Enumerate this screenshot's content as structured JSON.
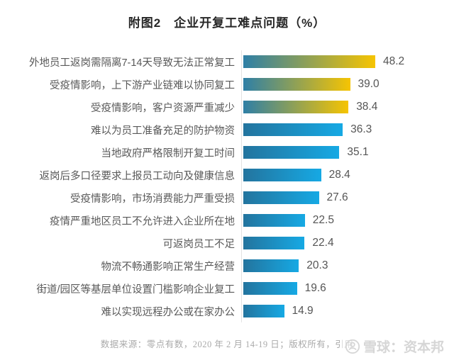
{
  "title": "附图2　企业开复工难点问题（%）",
  "chart_data": {
    "type": "bar",
    "orientation": "horizontal",
    "title": "附图2　企业开复工难点问题（%）",
    "categories": [
      "外地员工返岗需隔离7-14天导致无法正常复工",
      "受疫情影响，上下游产业链难以协同复工",
      "受疫情影响，客户资源严重减少",
      "难以为员工准备充足的防护物资",
      "当地政府严格限制开复工时间",
      "返岗后多口径要求上报员工动向及健康信息",
      "受疫情影响，市场消费能力严重受损",
      "疫情严重地区员工不允许进入企业所在地",
      "可返岗员工不足",
      "物流不畅通影响正常生产经营",
      "街道/园区等基层单位设置门槛影响企业复工",
      "难以实现远程办公或在家办公"
    ],
    "values": [
      48.2,
      39.0,
      38.4,
      36.3,
      35.1,
      28.4,
      27.6,
      22.5,
      22.4,
      20.3,
      19.6,
      14.9
    ],
    "value_labels": [
      "48.2",
      "39.0",
      "38.4",
      "36.3",
      "35.1",
      "28.4",
      "27.6",
      "22.5",
      "22.4",
      "20.3",
      "19.6",
      "14.9"
    ],
    "xlim": [
      0,
      55
    ],
    "grid": false,
    "legend": false,
    "data_labels": "outside-end",
    "highlight": {
      "gold_bar_count": 3
    },
    "colors": {
      "gold_gradient_start": "#2e7fa6",
      "gold_gradient_end": "#f6c402",
      "blue_gradient_start": "#23749e",
      "blue_gradient_end": "#16a9e4",
      "value_text": "#555555",
      "category_text": "#595959",
      "title_text": "#262626"
    }
  },
  "footer": {
    "source_text": "数据来源：零点有数，2020 年 2 月 14-19 日；版权所有，引用"
  },
  "watermark": {
    "logo": "xueqiu-logo",
    "text": "雪球：资本邦"
  }
}
